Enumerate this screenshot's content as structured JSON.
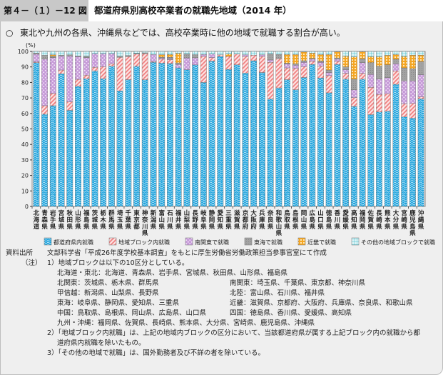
{
  "header": {
    "figure_number": "第４－（１）－12 図",
    "title": "都道府県別高校卒業者の就職先地域（2014 年）"
  },
  "summary": {
    "bullet": "○",
    "text": "東北や九州の各県、沖縄県などでは、高校卒業時に他の地域で就職する割合が高い。"
  },
  "chart_data": {
    "type": "bar",
    "stacked": true,
    "ylabel": "(%)",
    "ylim": [
      0,
      100
    ],
    "yticks": [
      0,
      10,
      20,
      30,
      40,
      50,
      60,
      70,
      80,
      90,
      100
    ],
    "legend_position": "bottom",
    "categories": [
      "北海道",
      "青森県",
      "岩手県",
      "宮城県",
      "秋田県",
      "山形県",
      "福島県",
      "茨城県",
      "栃木県",
      "群馬県",
      "埼玉県",
      "千葉県",
      "東京都",
      "神奈川県",
      "新潟県",
      "富山県",
      "石川県",
      "福井県",
      "山梨県",
      "長野県",
      "岐阜県",
      "静岡県",
      "愛知県",
      "三重県",
      "滋賀県",
      "京都府",
      "大阪府",
      "兵庫県",
      "奈良県",
      "和歌山県",
      "鳥取県",
      "島根県",
      "岡山県",
      "広島県",
      "山口県",
      "徳島県",
      "香川県",
      "愛媛県",
      "高知県",
      "福岡県",
      "佐賀県",
      "長崎県",
      "熊本県",
      "大分県",
      "宮崎県",
      "鹿児島県",
      "沖縄県"
    ],
    "series": [
      {
        "name": "都道府県内就職",
        "color": "#1fa3dc",
        "pattern": "wave",
        "values": [
          92.8,
          59.5,
          65,
          85.6,
          62,
          77.5,
          82.4,
          87.5,
          82.4,
          90.5,
          74.5,
          81.8,
          90.5,
          81.7,
          93,
          92.5,
          92.2,
          89.4,
          88.2,
          91.3,
          80,
          93.7,
          96.8,
          88.4,
          91.4,
          86.1,
          94,
          86.4,
          69.3,
          76.5,
          81.8,
          75.3,
          83.2,
          91.6,
          82.9,
          73.3,
          91.6,
          82.1,
          64.5,
          82.1,
          59.2,
          60.9,
          61.4,
          78.8,
          57.7,
          57,
          69.4
        ]
      },
      {
        "name": "地域ブロック内就職",
        "color": "#f08a8a",
        "pattern": "hatch",
        "values": [
          0.4,
          5.5,
          8,
          2.4,
          5.5,
          4.5,
          2.3,
          2.3,
          7.8,
          1.5,
          21.7,
          14.8,
          7.8,
          16.9,
          0.5,
          2.5,
          2.5,
          0,
          0,
          0,
          16.8,
          2.3,
          1,
          8.4,
          6.9,
          10.7,
          3.6,
          10.4,
          23.7,
          18.8,
          7.6,
          13.8,
          7,
          2,
          7.6,
          11.1,
          2,
          3.8,
          5.7,
          3.8,
          17.6,
          11.4,
          11.3,
          8.6,
          8.6,
          9.5,
          1.2
        ]
      },
      {
        "name": "南関東で就職",
        "color": "#c7a3d9",
        "pattern": "dots",
        "values": [
          5,
          30,
          23,
          9,
          29.5,
          14.6,
          11.3,
          8.8,
          8.4,
          6.6,
          0,
          0,
          0,
          0,
          4.5,
          0.8,
          0.5,
          2.2,
          7.6,
          4.6,
          1.2,
          2.3,
          0,
          0,
          0,
          1,
          0,
          1,
          1.5,
          0,
          2.5,
          2,
          2.8,
          1.4,
          2.5,
          2,
          1.4,
          2.3,
          5,
          6.9,
          8.4,
          9.9,
          10.4,
          4.6,
          14.7,
          14.5,
          14.4
        ]
      },
      {
        "name": "東海で就職",
        "color": "#9e9e9e",
        "pattern": "solid",
        "values": [
          0.8,
          2.5,
          1,
          0.5,
          0.8,
          0.5,
          1,
          0,
          0,
          0,
          0.8,
          0.8,
          0.5,
          0.5,
          0,
          0.5,
          1,
          1,
          2.6,
          2,
          0,
          0,
          0,
          0,
          0,
          0,
          0,
          0,
          4,
          2.7,
          0.5,
          0.9,
          1,
          0.5,
          0.8,
          1.6,
          0.8,
          1.8,
          6.9,
          2.4,
          7.6,
          8.3,
          8.3,
          3,
          8.4,
          7.8,
          8.5
        ]
      },
      {
        "name": "近畿で就職",
        "color": "#f5a623",
        "pattern": "grid",
        "values": [
          0,
          0,
          0.8,
          0,
          0,
          0,
          0,
          0,
          0,
          0,
          0,
          0,
          0,
          0,
          0,
          1.6,
          1.8,
          6.2,
          0,
          0,
          0,
          0,
          0,
          1.5,
          0,
          0,
          0,
          0,
          0,
          0,
          5.6,
          6,
          5.6,
          3.4,
          4.2,
          10,
          4,
          7,
          14.4,
          5.2,
          3.8,
          6.1,
          6.1,
          3,
          7.4,
          8.8,
          4.1
        ]
      },
      {
        "name": "その他の地域ブロックで就職",
        "color": "#7fd2dc",
        "pattern": "tgrid",
        "values": [
          1,
          2.5,
          2.2,
          2.5,
          2.2,
          2.9,
          3,
          1.4,
          1.4,
          1.4,
          3,
          2.6,
          1.2,
          0.9,
          2,
          2.1,
          2,
          1.2,
          1.6,
          2.1,
          2,
          1.7,
          2.2,
          1.7,
          1.7,
          2.2,
          2.4,
          2.2,
          1.5,
          2,
          2,
          2,
          3.4,
          1.1,
          2,
          2,
          2.8,
          3,
          3.5,
          2.4,
          3.4,
          3.4,
          2.5,
          2,
          3.2,
          2.4,
          2.4
        ]
      }
    ]
  },
  "notes": {
    "source_label": "資料出所",
    "source_text": "文部科学省「平成26年度学校基本調査」をもとに厚生労働省労働政策担当参事官室にて作成",
    "note_label": "（注）",
    "note1": "1）地域ブロックは以下の10区分としている。",
    "regions": [
      {
        "left": "北海道・東北：北海道、青森県、岩手県、宮城県、秋田県、山形県、福島県",
        "right": ""
      },
      {
        "left": "北関東：茨城県、栃木県、群馬県",
        "right": "南関東：埼玉県、千葉県、東京都、神奈川県"
      },
      {
        "left": "甲信越：新潟県、山梨県、長野県",
        "right": "北陸：富山県、石川県、福井県"
      },
      {
        "left": "東海：岐阜県、静岡県、愛知県、三重県",
        "right": "近畿：滋賀県、京都府、大阪府、兵庫県、奈良県、和歌山県"
      },
      {
        "left": "中国：鳥取県、島根県、岡山県、広島県、山口県",
        "right": "四国：徳島県、香川県、愛媛県、高知県"
      },
      {
        "left": "九州・沖縄：福岡県、佐賀県、長崎県、熊本県、大分県、宮崎県、鹿児島県、沖縄県",
        "right": ""
      }
    ],
    "note2a": "2）「地域ブロック内就職」は、上記の地域内ブロックの区分において、当該都道府県が属する上記ブロック内の就職から都",
    "note2b": "道府県内就職を除いたもの。",
    "note3": "3）「その他の地域で就職」は、国外勤務者及び不詳の者を除いている。"
  }
}
